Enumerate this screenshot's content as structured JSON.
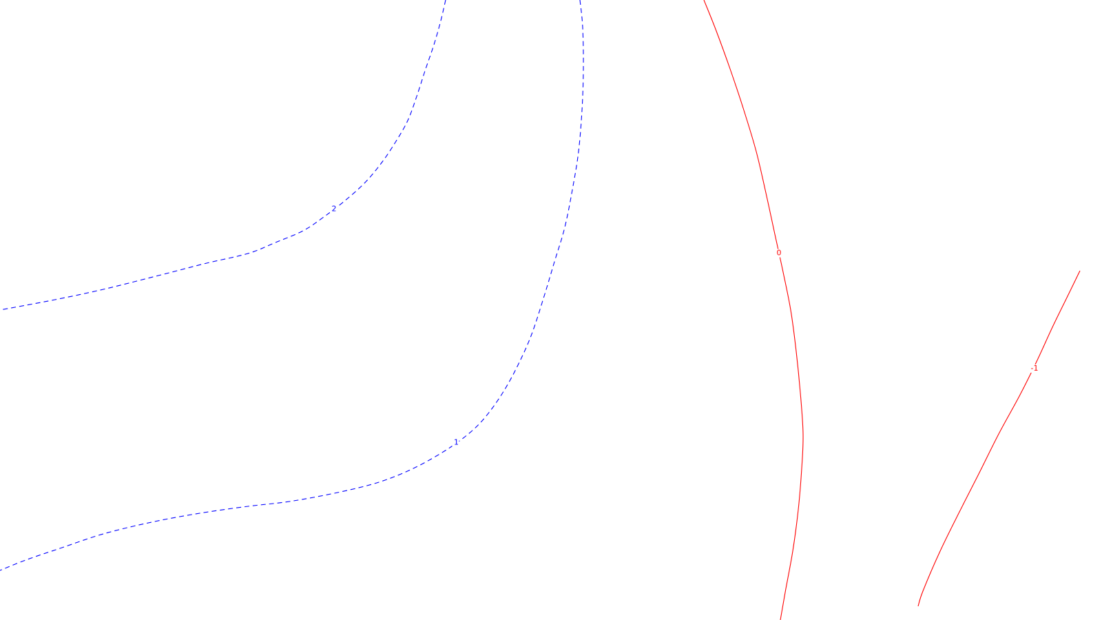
{
  "chart_data": {
    "type": "contour",
    "title": "",
    "xlabel": "",
    "ylabel": "",
    "grid": false,
    "legend": "none",
    "levels": [
      {
        "level": 2,
        "label": "2",
        "color": "#0000ff",
        "style": "dashed",
        "points": [
          [
            647,
            0
          ],
          [
            640,
            30
          ],
          [
            630,
            65
          ],
          [
            618,
            100
          ],
          [
            605,
            140
          ],
          [
            592,
            175
          ],
          [
            575,
            205
          ],
          [
            555,
            235
          ],
          [
            530,
            265
          ],
          [
            500,
            292
          ],
          [
            470,
            315
          ],
          [
            440,
            335
          ],
          [
            400,
            352
          ],
          [
            360,
            368
          ],
          [
            300,
            382
          ],
          [
            230,
            400
          ],
          [
            150,
            420
          ],
          [
            80,
            435
          ],
          [
            0,
            450
          ]
        ],
        "label_at": 9.5
      },
      {
        "level": 1,
        "label": "1",
        "color": "#0000ff",
        "style": "dashed",
        "points": [
          [
            842,
            0
          ],
          [
            846,
            40
          ],
          [
            847,
            100
          ],
          [
            845,
            160
          ],
          [
            840,
            220
          ],
          [
            832,
            270
          ],
          [
            820,
            330
          ],
          [
            805,
            380
          ],
          [
            790,
            430
          ],
          [
            772,
            485
          ],
          [
            752,
            530
          ],
          [
            730,
            570
          ],
          [
            705,
            605
          ],
          [
            680,
            630
          ],
          [
            645,
            655
          ],
          [
            600,
            680
          ],
          [
            550,
            700
          ],
          [
            490,
            715
          ],
          [
            420,
            728
          ],
          [
            360,
            735
          ],
          [
            290,
            745
          ],
          [
            220,
            758
          ],
          [
            150,
            775
          ],
          [
            90,
            795
          ],
          [
            40,
            812
          ],
          [
            0,
            828
          ]
        ],
        "label_at": 13.5
      },
      {
        "level": 0,
        "label": "0",
        "color": "#ff0000",
        "style": "solid",
        "points": [
          [
            1022,
            0
          ],
          [
            1040,
            45
          ],
          [
            1060,
            100
          ],
          [
            1080,
            160
          ],
          [
            1098,
            220
          ],
          [
            1112,
            280
          ],
          [
            1125,
            340
          ],
          [
            1137,
            395
          ],
          [
            1148,
            450
          ],
          [
            1156,
            510
          ],
          [
            1162,
            570
          ],
          [
            1166,
            630
          ],
          [
            1164,
            680
          ],
          [
            1159,
            740
          ],
          [
            1151,
            800
          ],
          [
            1140,
            860
          ],
          [
            1133,
            900
          ]
        ],
        "label_at": 6.5
      },
      {
        "level": -1,
        "label": "-1",
        "color": "#ff0000",
        "style": "solid",
        "points": [
          [
            1568,
            393
          ],
          [
            1550,
            430
          ],
          [
            1528,
            475
          ],
          [
            1505,
            525
          ],
          [
            1480,
            575
          ],
          [
            1450,
            630
          ],
          [
            1420,
            690
          ],
          [
            1392,
            745
          ],
          [
            1365,
            800
          ],
          [
            1340,
            858
          ],
          [
            1333,
            880
          ]
        ],
        "label_at": 3.2
      }
    ],
    "view": {
      "width": 1600,
      "height": 900
    }
  }
}
